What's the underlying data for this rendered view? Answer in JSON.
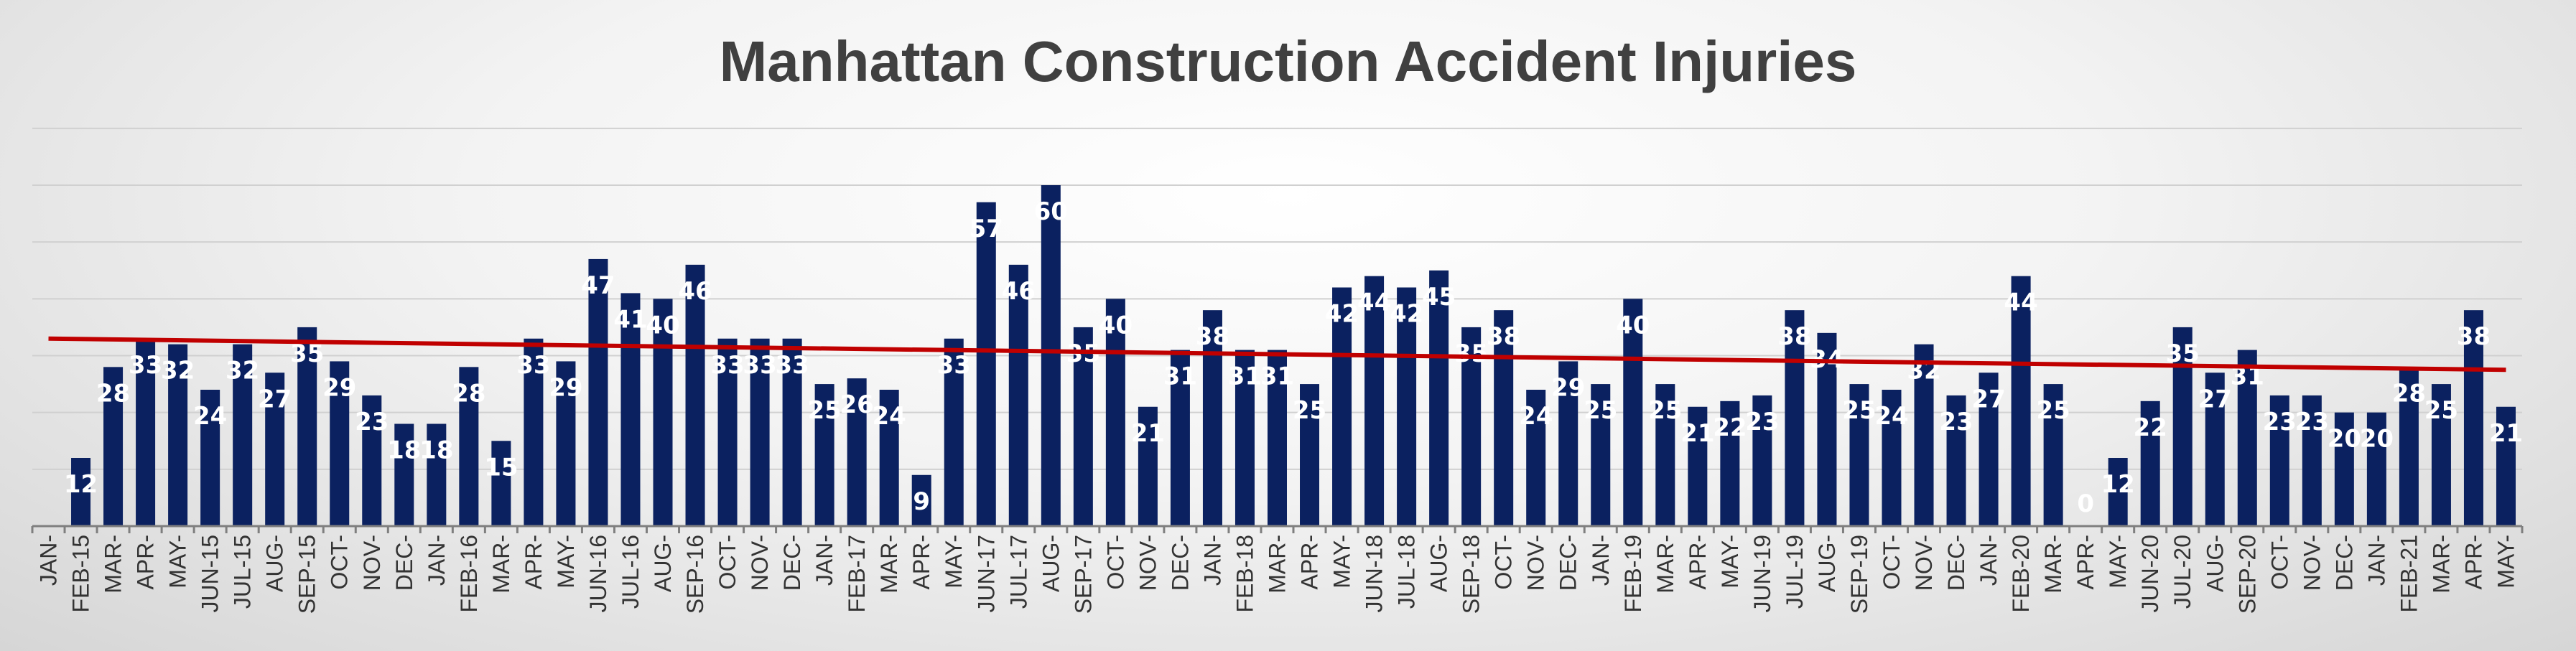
{
  "chart_data": {
    "type": "bar",
    "title": "Manhattan Construction Accident Injuries",
    "xlabel": "",
    "ylabel": "",
    "ylim": [
      0,
      60
    ],
    "grid": true,
    "legend": "none",
    "categories": [
      "JAN-15",
      "FEB-15",
      "MAR-15",
      "APR-15",
      "MAY-15",
      "JUN-15",
      "JUL-15",
      "AUG-15",
      "SEP-15",
      "OCT-15",
      "NOV-15",
      "DEC-15",
      "JAN-16",
      "FEB-16",
      "MAR-16",
      "APR-16",
      "MAY-16",
      "JUN-16",
      "JUL-16",
      "AUG-16",
      "SEP-16",
      "OCT-16",
      "NOV-16",
      "DEC-16",
      "JAN-17",
      "FEB-17",
      "MAR-17",
      "APR-17",
      "MAY-17",
      "JUN-17",
      "JUL-17",
      "AUG-17",
      "SEP-17",
      "OCT-17",
      "NOV-17",
      "DEC-17",
      "JAN-18",
      "FEB-18",
      "MAR-18",
      "APR-18",
      "MAY-18",
      "JUN-18",
      "JUL-18",
      "AUG-18",
      "SEP-18",
      "OCT-18",
      "NOV-18",
      "DEC-18",
      "JAN-19",
      "FEB-19",
      "MAR-19",
      "APR-19",
      "MAY-19",
      "JUN-19",
      "JUL-19",
      "AUG-19",
      "SEP-19",
      "OCT-19",
      "NOV-19",
      "DEC-19",
      "JAN-20",
      "FEB-20",
      "MAR-20",
      "APR-20",
      "MAY-20",
      "JUN-20",
      "JUL-20",
      "AUG-20",
      "SEP-20",
      "OCT-20",
      "NOV-20",
      "DEC-20",
      "JAN-21",
      "FEB-21",
      "MAR-21",
      "APR-21",
      "MAY-21"
    ],
    "tick_labels": [
      "JAN-",
      "FEB-15",
      "MAR-",
      "APR-",
      "MAY-",
      "JUN-15",
      "JUL-15",
      "AUG-",
      "SEP-15",
      "OCT-",
      "NOV-",
      "DEC-",
      "JAN-",
      "FEB-16",
      "MAR-",
      "APR-",
      "MAY-",
      "JUN-16",
      "JUL-16",
      "AUG-",
      "SEP-16",
      "OCT-",
      "NOV-",
      "DEC-",
      "JAN-",
      "FEB-17",
      "MAR-",
      "APR-",
      "MAY-",
      "JUN-17",
      "JUL-17",
      "AUG-",
      "SEP-17",
      "OCT-",
      "NOV-",
      "DEC-",
      "JAN-",
      "FEB-18",
      "MAR-",
      "APR-",
      "MAY-",
      "JUN-18",
      "JUL-18",
      "AUG-",
      "SEP-18",
      "OCT-",
      "NOV-",
      "DEC-",
      "JAN-",
      "FEB-19",
      "MAR-",
      "APR-",
      "MAY-",
      "JUN-19",
      "JUL-19",
      "AUG-",
      "SEP-19",
      "OCT-",
      "NOV-",
      "DEC-",
      "JAN-",
      "FEB-20",
      "MAR-",
      "APR-",
      "MAY-",
      "JUN-20",
      "JUL-20",
      "AUG-",
      "SEP-20",
      "OCT-",
      "NOV-",
      "DEC-",
      "JAN-",
      "FEB-21",
      "MAR-",
      "APR-",
      "MAY-"
    ],
    "series": [
      {
        "values": [
          0,
          12,
          28,
          33,
          32,
          24,
          32,
          27,
          35,
          29,
          23,
          18,
          18,
          28,
          15,
          33,
          29,
          47,
          41,
          40,
          46,
          33,
          33,
          33,
          25,
          26,
          24,
          9,
          33,
          57,
          46,
          60,
          35,
          40,
          21,
          31,
          38,
          31,
          31,
          25,
          42,
          44,
          42,
          45,
          35,
          38,
          24,
          29,
          25,
          40,
          25,
          21,
          22,
          23,
          38,
          34,
          25,
          24,
          32,
          23,
          27,
          44,
          25,
          0,
          12,
          22,
          35,
          27,
          31,
          23,
          23,
          20,
          20,
          28,
          25,
          38,
          21
        ],
        "data_labels": [
          "",
          "12",
          "28",
          "33",
          "32",
          "24",
          "32",
          "27",
          "35",
          "29",
          "23",
          "18",
          "18",
          "28",
          "15",
          "33",
          "29",
          "47",
          "41",
          "40",
          "46",
          "33",
          "33",
          "33",
          "25",
          "26",
          "24",
          "9",
          "33",
          "57",
          "46",
          "60",
          "35",
          "40",
          "21",
          "31",
          "38",
          "31",
          "31",
          "25",
          "42",
          "44",
          "42",
          "45",
          "35",
          "38",
          "24",
          "29",
          "25",
          "40",
          "25",
          "21",
          "22",
          "23",
          "38",
          "34",
          "25",
          "24",
          "32",
          "23",
          "27",
          "44",
          "25",
          "0",
          "12",
          "22",
          "35",
          "27",
          "31",
          "23",
          "23",
          "20",
          "20",
          "28",
          "25",
          "38",
          "21"
        ]
      }
    ],
    "trendline": {
      "type": "linear",
      "y_start": 33.0,
      "y_end": 27.5
    },
    "colors": {
      "bar": "#0b2160",
      "trendline": "#c00000",
      "data_label": "#ffffff",
      "title": "#404040"
    }
  }
}
